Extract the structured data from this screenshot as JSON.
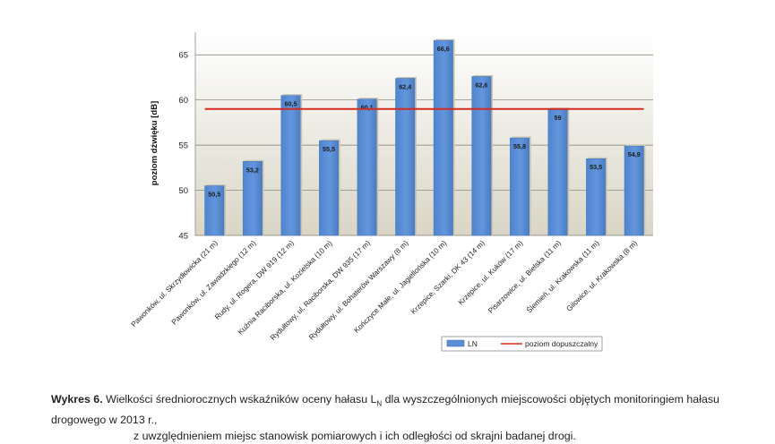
{
  "chart_data": {
    "type": "bar",
    "ylabel": "poziom dźwięku [dB]",
    "ylim": [
      45,
      67.5
    ],
    "yticks": [
      "45",
      "50",
      "55",
      "60",
      "65"
    ],
    "categories": [
      "Pawonków, ul. Skrzydłowicka (21 m)",
      "Pawonków, ul. Zawadzkiego (12 m)",
      "Rudy, ul. Rogera, DW 919 (12 m)",
      "Kuźnia Raciborska, ul. Kozielska (10 m)",
      "Rydułtowy, ul. Raciborska, DW 935 (17 m)",
      "Rydułtowy, ul. Bohaterów Warszawy (8 m)",
      "Kończyce Małe, ul. Jagiellońska (10 m)",
      "Krzepice, Szarki, DK 43 (14 m)",
      "Krzepice, ul. Kuków (17 m)",
      "Pisarzowice, ul. Bielska (11 m)",
      "Ślemień, ul. Krakowska (11 m)",
      "Gilowice, ul. Krakowska (8 m)"
    ],
    "series": [
      {
        "name": "LN",
        "type": "bar",
        "color": "#5b8ed6",
        "values": [
          50.5,
          53.2,
          60.5,
          55.5,
          60.1,
          62.4,
          66.6,
          62.6,
          55.8,
          59,
          53.5,
          54.9
        ],
        "labels": [
          "50,5",
          "53,2",
          "60,5",
          "55,5",
          "60,1",
          "62,4",
          "66,6",
          "62,6",
          "55,8",
          "59",
          "53,5",
          "54,9"
        ]
      },
      {
        "name": "poziom dopuszczalny",
        "type": "line",
        "color": "#d62b1f",
        "value": 59
      }
    ],
    "legend_position": "bottom-right"
  },
  "caption": {
    "label": "Wykres 6.",
    "line1": "Wielkości średniorocznych wskaźników oceny hałasu L",
    "line1_sub": "N",
    "line1_rest": "dla wyszczególnionych miejscowości objętych monitoringiem hałasu drogowego w 2013 r.,",
    "line2": "z uwzględnieniem miejsc stanowisk pomiarowych i ich odległości od skrajni badanej drogi."
  }
}
